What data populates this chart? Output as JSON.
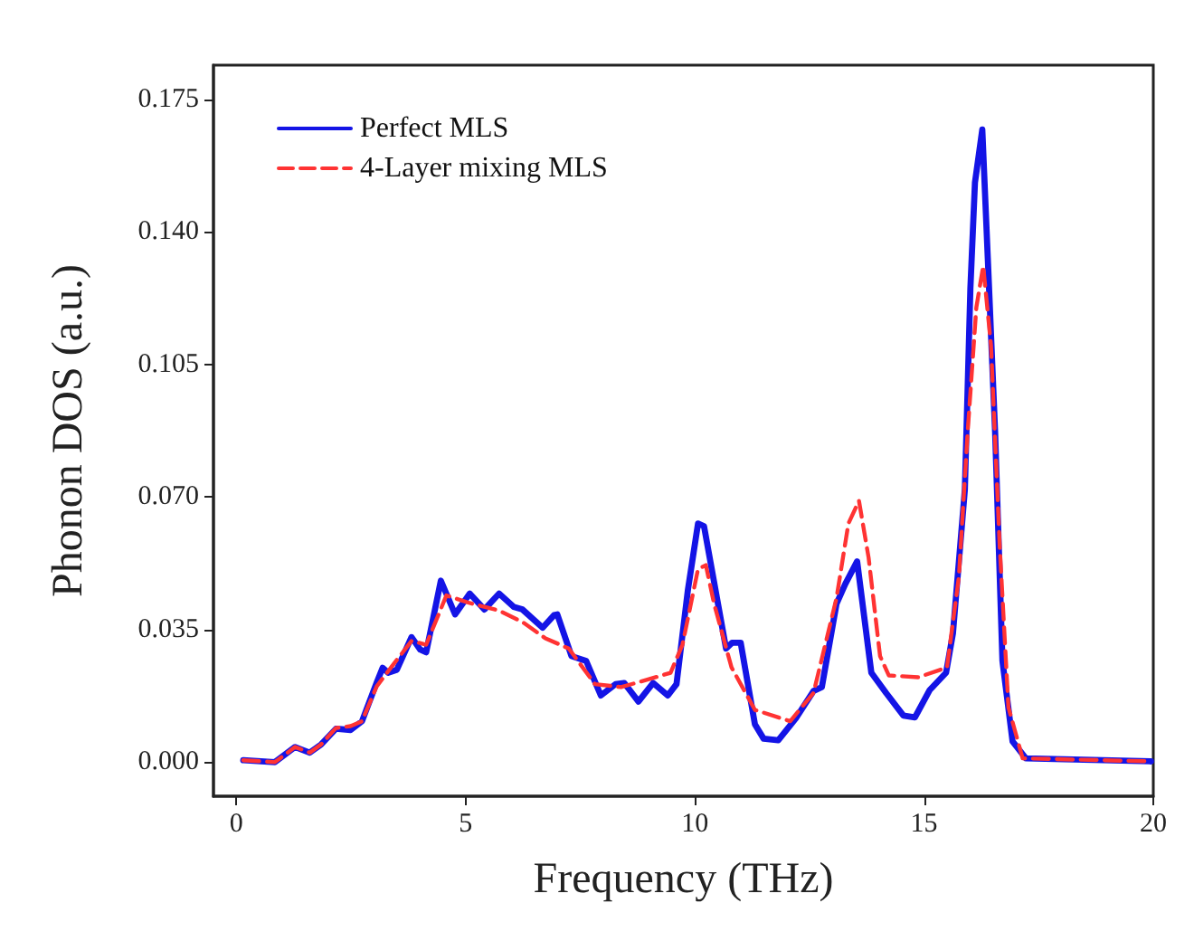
{
  "chart_data": {
    "type": "line",
    "xlabel": "Frequency (THz)",
    "ylabel": "Phonon DOS (a.u.)",
    "xlim": [
      -0.5,
      20
    ],
    "xticks": [
      0,
      5,
      10,
      15,
      20
    ],
    "ylim": [
      -0.009,
      0.184
    ],
    "yticks": [
      {
        "value": 0,
        "label": "0.000"
      },
      {
        "value": 0.035,
        "label": "0.035"
      },
      {
        "value": 0.07,
        "label": "0.070"
      },
      {
        "value": 0.105,
        "label": "0.105"
      },
      {
        "value": 0.14,
        "label": "0.140"
      },
      {
        "value": 0.175,
        "label": "0.175"
      }
    ],
    "grid": false,
    "legend": "top left",
    "marker": "none",
    "series": [
      {
        "name": "Perfect MLS",
        "color": "#1414e6",
        "line_style": "solid",
        "x": [
          0.15,
          0.84,
          1.28,
          1.6,
          1.85,
          2.17,
          2.49,
          2.74,
          3.06,
          3.19,
          3.31,
          3.5,
          3.82,
          4.01,
          4.14,
          4.46,
          4.77,
          5.09,
          5.41,
          5.73,
          6.05,
          6.24,
          6.68,
          6.93,
          7.0,
          7.31,
          7.63,
          7.95,
          8.27,
          8.46,
          8.77,
          9.09,
          9.41,
          9.6,
          9.85,
          10.07,
          10.2,
          10.68,
          10.81,
          11.0,
          11.31,
          11.5,
          11.82,
          12.2,
          12.59,
          12.77,
          13.09,
          13.28,
          13.54,
          13.85,
          14.17,
          14.55,
          14.8,
          15.12,
          15.48,
          15.63,
          15.89,
          16.01,
          16.11,
          16.27,
          16.39,
          16.55,
          16.71,
          16.93,
          17.22,
          19.95
        ],
        "values": [
          0.0005,
          0,
          0.004,
          0.0025,
          0.0047,
          0.0088,
          0.0085,
          0.0108,
          0.021,
          0.0249,
          0.0236,
          0.0244,
          0.033,
          0.0297,
          0.029,
          0.0479,
          0.039,
          0.0445,
          0.0403,
          0.0445,
          0.041,
          0.0403,
          0.0355,
          0.0388,
          0.039,
          0.028,
          0.0267,
          0.0176,
          0.0206,
          0.0209,
          0.016,
          0.0209,
          0.0176,
          0.0206,
          0.0456,
          0.063,
          0.0623,
          0.03,
          0.0315,
          0.0315,
          0.01,
          0.0062,
          0.0058,
          0.0115,
          0.0188,
          0.0198,
          0.0418,
          0.047,
          0.053,
          0.0236,
          0.0183,
          0.0123,
          0.0118,
          0.019,
          0.0236,
          0.034,
          0.072,
          0.125,
          0.153,
          0.167,
          0.133,
          0.087,
          0.0267,
          0.0055,
          0.001,
          0.0002
        ]
      },
      {
        "name": "4-Layer mixing MLS",
        "color": "#ff3333",
        "line_style": "dashed",
        "x": [
          0.15,
          0.84,
          1.28,
          1.6,
          1.85,
          2.17,
          2.49,
          2.74,
          3.06,
          3.31,
          3.82,
          4.14,
          4.58,
          5.09,
          5.73,
          6.24,
          6.74,
          7.25,
          7.82,
          8.39,
          9.03,
          9.47,
          9.73,
          10.07,
          10.24,
          10.42,
          10.8,
          11.31,
          12.08,
          12.59,
          13.09,
          13.35,
          13.58,
          13.79,
          14.04,
          14.23,
          14.87,
          15.5,
          15.76,
          15.95,
          16.14,
          16.29,
          16.46,
          16.65,
          16.84,
          17.15,
          19.95
        ],
        "values": [
          0.0005,
          0,
          0.004,
          0.0025,
          0.0047,
          0.009,
          0.0095,
          0.0108,
          0.02,
          0.024,
          0.032,
          0.031,
          0.044,
          0.042,
          0.04,
          0.037,
          0.0327,
          0.03,
          0.0206,
          0.0198,
          0.022,
          0.0236,
          0.031,
          0.051,
          0.052,
          0.0418,
          0.025,
          0.0138,
          0.0108,
          0.0183,
          0.0433,
          0.063,
          0.069,
          0.054,
          0.028,
          0.0229,
          0.0224,
          0.025,
          0.049,
          0.087,
          0.12,
          0.131,
          0.11,
          0.057,
          0.0145,
          0.001,
          0.0002
        ]
      }
    ]
  }
}
